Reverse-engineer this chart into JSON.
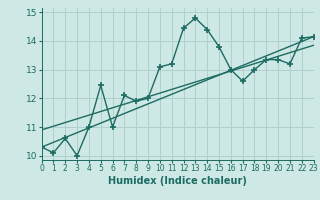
{
  "zigzag_x": [
    0,
    1,
    2,
    3,
    4,
    5,
    6,
    7,
    8,
    9,
    10,
    11,
    12,
    13,
    14,
    15,
    16,
    17,
    18,
    19,
    20,
    21,
    22,
    23
  ],
  "zigzag_y": [
    10.3,
    10.1,
    10.6,
    10.0,
    11.0,
    12.45,
    11.0,
    12.1,
    11.9,
    12.0,
    13.1,
    13.2,
    14.45,
    14.8,
    14.4,
    13.8,
    13.0,
    12.6,
    13.0,
    13.35,
    13.35,
    13.2,
    14.1,
    14.15
  ],
  "trend1_x": [
    0,
    23
  ],
  "trend1_y": [
    10.3,
    14.15
  ],
  "trend2_x": [
    0,
    23
  ],
  "trend2_y": [
    10.9,
    13.85
  ],
  "bg_color": "#cde8e5",
  "grid_color": "#b0d0ce",
  "line_color": "#1d6b62",
  "xlabel": "Humidex (Indice chaleur)",
  "xlim": [
    0,
    23
  ],
  "ylim": [
    9.85,
    15.15
  ],
  "yticks": [
    10,
    11,
    12,
    13,
    14,
    15
  ],
  "xticks": [
    0,
    1,
    2,
    3,
    4,
    5,
    6,
    7,
    8,
    9,
    10,
    11,
    12,
    13,
    14,
    15,
    16,
    17,
    18,
    19,
    20,
    21,
    22,
    23
  ]
}
